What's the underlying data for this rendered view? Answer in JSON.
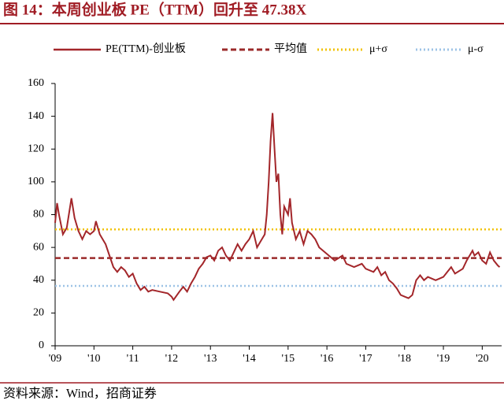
{
  "chart_data": {
    "type": "line",
    "title": "图 14：本周创业板 PE（TTM）回升至 47.38X",
    "source": "资料来源：Wind，招商证券",
    "xlim": [
      2009,
      2020.5
    ],
    "xticks": [
      {
        "value": 2009,
        "label": "'09"
      },
      {
        "value": 2010,
        "label": "'10"
      },
      {
        "value": 2011,
        "label": "'11"
      },
      {
        "value": 2012,
        "label": "'12"
      },
      {
        "value": 2013,
        "label": "'13"
      },
      {
        "value": 2014,
        "label": "'14"
      },
      {
        "value": 2015,
        "label": "'15"
      },
      {
        "value": 2016,
        "label": "'16"
      },
      {
        "value": 2017,
        "label": "'17"
      },
      {
        "value": 2018,
        "label": "'18"
      },
      {
        "value": 2019,
        "label": "'19"
      },
      {
        "value": 2020,
        "label": "'20"
      }
    ],
    "ylim": [
      0,
      160
    ],
    "yticks": [
      0,
      20,
      40,
      60,
      80,
      100,
      120,
      140,
      160
    ],
    "series": [
      {
        "name": "PE(TTM)-创业板",
        "color": "#a3262a",
        "x": [
          2009.0,
          2009.05,
          2009.1,
          2009.2,
          2009.3,
          2009.42,
          2009.5,
          2009.6,
          2009.7,
          2009.8,
          2009.9,
          2010.0,
          2010.05,
          2010.15,
          2010.3,
          2010.4,
          2010.5,
          2010.6,
          2010.7,
          2010.8,
          2010.9,
          2011.0,
          2011.1,
          2011.2,
          2011.3,
          2011.4,
          2011.5,
          2011.7,
          2011.9,
          2012.0,
          2012.05,
          2012.2,
          2012.3,
          2012.4,
          2012.5,
          2012.6,
          2012.7,
          2012.8,
          2012.9,
          2013.0,
          2013.1,
          2013.2,
          2013.3,
          2013.4,
          2013.5,
          2013.6,
          2013.7,
          2013.8,
          2013.9,
          2014.0,
          2014.1,
          2014.2,
          2014.3,
          2014.4,
          2014.45,
          2014.5,
          2014.55,
          2014.6,
          2014.65,
          2014.7,
          2014.75,
          2014.8,
          2014.85,
          2014.9,
          2015.0,
          2015.05,
          2015.1,
          2015.2,
          2015.3,
          2015.4,
          2015.5,
          2015.6,
          2015.7,
          2015.8,
          2015.9,
          2016.0,
          2016.2,
          2016.4,
          2016.5,
          2016.7,
          2016.9,
          2017.0,
          2017.2,
          2017.3,
          2017.4,
          2017.5,
          2017.6,
          2017.7,
          2017.8,
          2017.9,
          2018.0,
          2018.1,
          2018.2,
          2018.3,
          2018.4,
          2018.5,
          2018.6,
          2018.8,
          2018.9,
          2019.0,
          2019.1,
          2019.2,
          2019.3,
          2019.5,
          2019.6,
          2019.7,
          2019.75,
          2019.8,
          2019.9,
          2020.0,
          2020.1,
          2020.2,
          2020.3,
          2020.4,
          2020.45
        ],
        "values": [
          75,
          87,
          80,
          68,
          72,
          90,
          78,
          70,
          65,
          70,
          68,
          70,
          76,
          68,
          62,
          55,
          48,
          45,
          48,
          46,
          42,
          44,
          38,
          34,
          36,
          33,
          34,
          33,
          32,
          30,
          28,
          33,
          36,
          33,
          38,
          42,
          47,
          50,
          54,
          55,
          52,
          58,
          60,
          55,
          52,
          57,
          62,
          58,
          62,
          65,
          70,
          60,
          64,
          68,
          80,
          100,
          125,
          142,
          120,
          100,
          105,
          80,
          68,
          85,
          80,
          90,
          75,
          65,
          70,
          62,
          70,
          68,
          65,
          60,
          58,
          56,
          52,
          55,
          50,
          48,
          50,
          47,
          45,
          48,
          43,
          45,
          40,
          38,
          35,
          31,
          30,
          29,
          31,
          40,
          43,
          40,
          42,
          40,
          41,
          42,
          45,
          48,
          44,
          47,
          52,
          56,
          58,
          55,
          57,
          52,
          50,
          57,
          52,
          49,
          48
        ]
      }
    ],
    "lines": [
      {
        "name": "平均值",
        "color": "#9b2a2a",
        "style": "dashed",
        "value": 53.5
      },
      {
        "name": "μ+σ",
        "color": "#f2c200",
        "style": "dotted",
        "value": 71
      },
      {
        "name": "μ-σ",
        "color": "#9dc3e6",
        "style": "dotted",
        "value": 36.5
      }
    ]
  }
}
